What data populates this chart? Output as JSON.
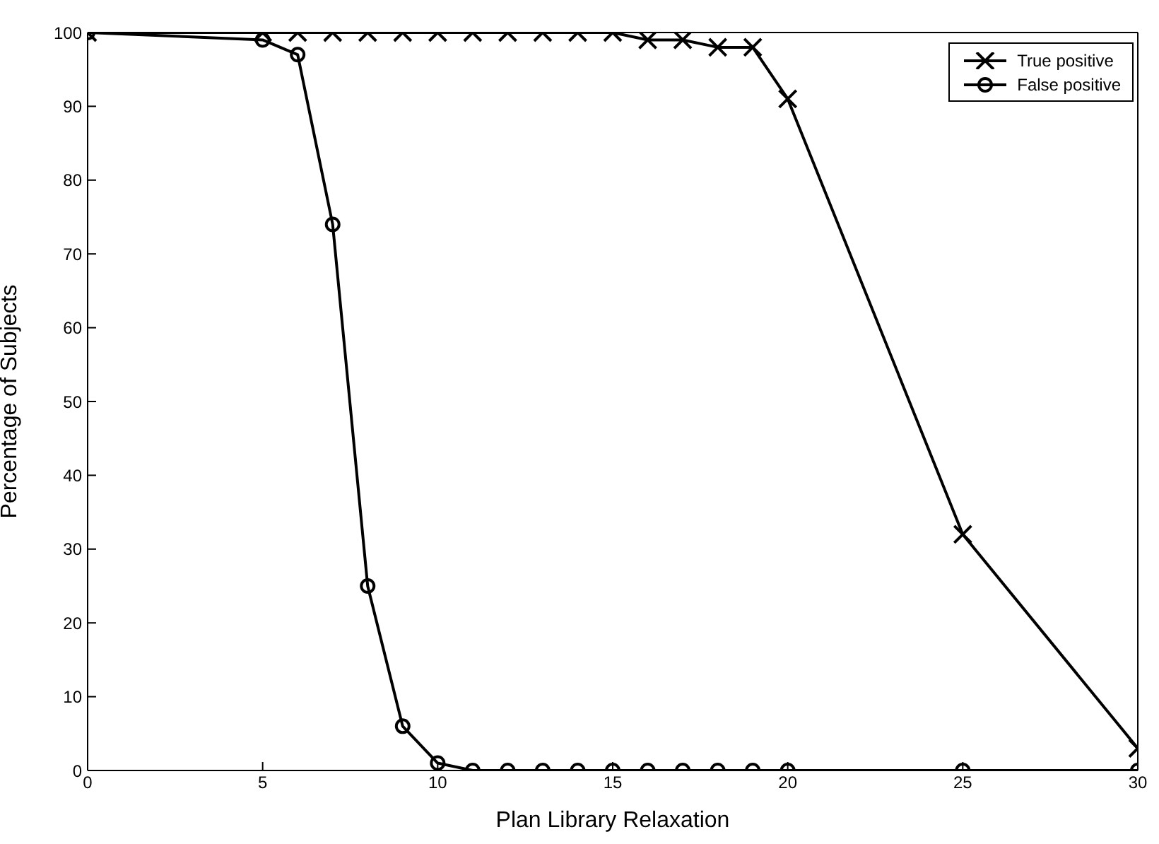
{
  "chart_data": {
    "type": "line",
    "xlabel": "Plan Library Relaxation",
    "ylabel": "Percentage of Subjects",
    "xlim": [
      0,
      30
    ],
    "xticks": [
      0,
      5,
      10,
      15,
      20,
      25,
      30
    ],
    "ylim": [
      0,
      100
    ],
    "yticks": [
      0,
      10,
      20,
      30,
      40,
      50,
      60,
      70,
      80,
      90,
      100
    ],
    "grid": false,
    "legend": "top right",
    "line_style": "solid",
    "series": [
      {
        "name": "True positive",
        "color": "#000000",
        "marker": "cross",
        "x": [
          0,
          5,
          6,
          7,
          8,
          9,
          10,
          11,
          12,
          13,
          14,
          15,
          16,
          17,
          18,
          19,
          20,
          25,
          30
        ],
        "values": [
          100,
          100,
          100,
          100,
          100,
          100,
          100,
          100,
          100,
          100,
          100,
          100,
          99,
          99,
          98,
          98,
          91,
          32,
          3
        ]
      },
      {
        "name": "False positive",
        "color": "#000000",
        "marker": "circle",
        "x": [
          0,
          5,
          6,
          7,
          8,
          9,
          10,
          11,
          12,
          13,
          14,
          15,
          16,
          17,
          18,
          19,
          20,
          25,
          30
        ],
        "values": [
          100,
          99,
          97,
          74,
          25,
          6,
          1,
          0,
          0,
          0,
          0,
          0,
          0,
          0,
          0,
          0,
          0,
          0,
          0
        ]
      }
    ]
  }
}
